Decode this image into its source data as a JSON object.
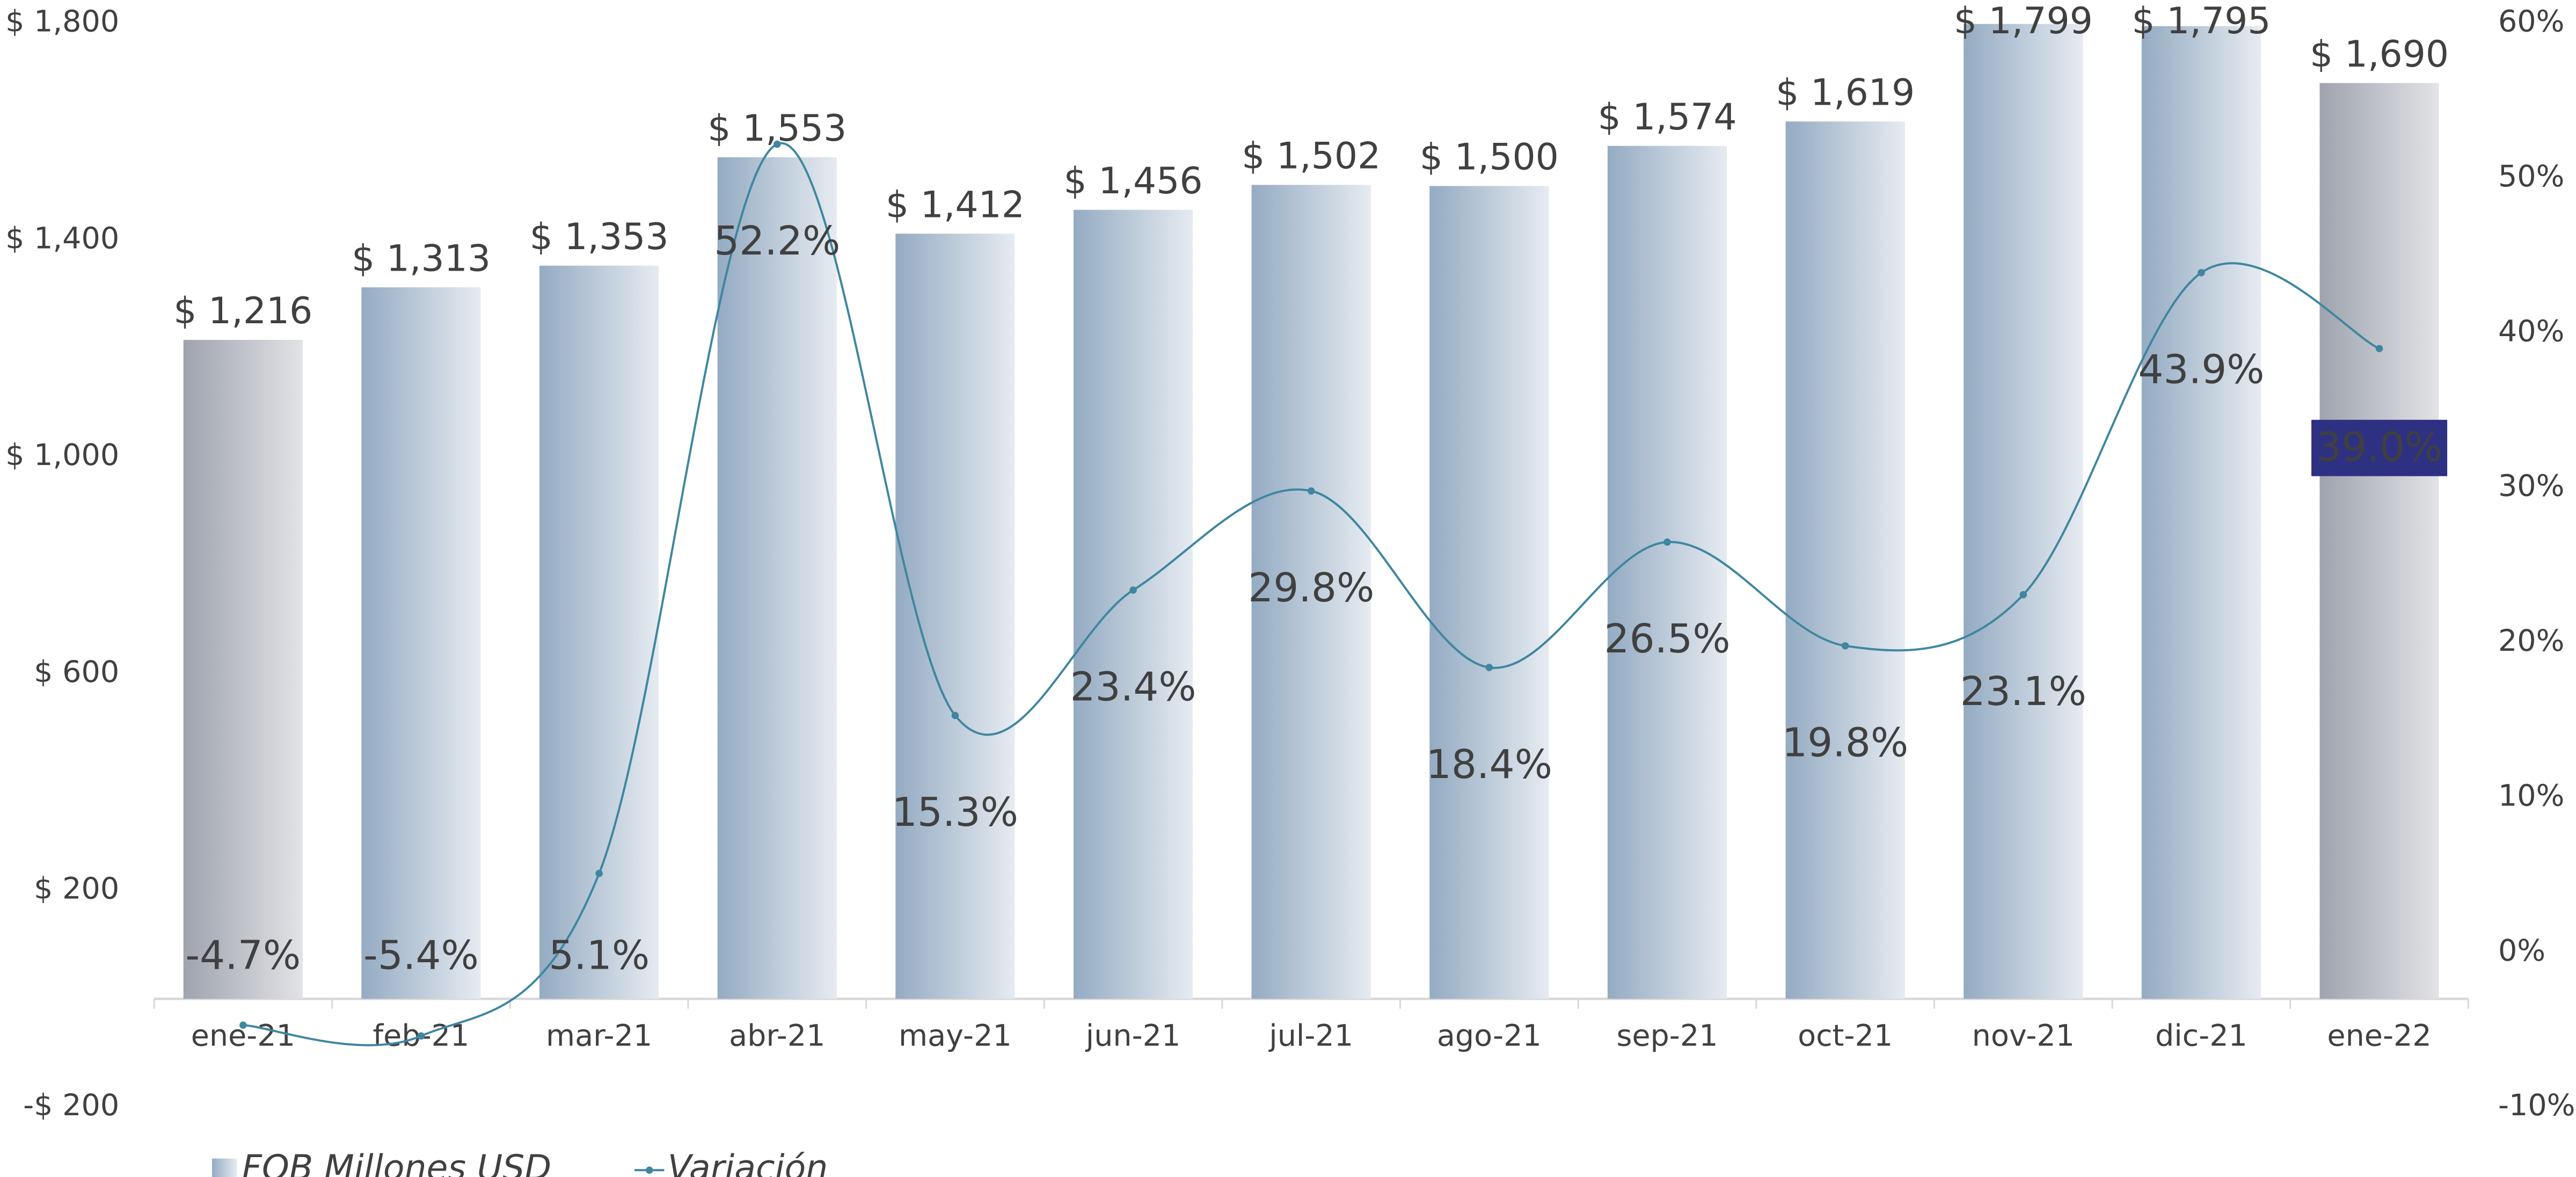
{
  "chart_data": {
    "type": "bar_line",
    "categories": [
      "ene-21",
      "feb-21",
      "mar-21",
      "abr-21",
      "may-21",
      "jun-21",
      "jul-21",
      "ago-21",
      "sep-21",
      "oct-21",
      "nov-21",
      "dic-21",
      "ene-22"
    ],
    "series": [
      {
        "name": "FOB Millones USD",
        "type": "bar",
        "color": "#94abc2",
        "edge_color": "#9ea3ae",
        "values": [
          1216,
          1313,
          1353,
          1553,
          1412,
          1456,
          1502,
          1500,
          1574,
          1619,
          1799,
          1795,
          1690
        ],
        "value_labels": [
          "$ 1,216",
          "$ 1,313",
          "$ 1,353",
          "$ 1,553",
          "$ 1,412",
          "$ 1,456",
          "$ 1,502",
          "$ 1,500",
          "$ 1,574",
          "$ 1,619",
          "$ 1,799",
          "$ 1,795",
          "$ 1,690"
        ]
      },
      {
        "name": "Variación",
        "type": "line",
        "axis": "y2",
        "color": "#3f86a0",
        "values": [
          -4.7,
          -5.4,
          5.1,
          52.2,
          15.3,
          23.4,
          29.8,
          18.4,
          26.5,
          19.8,
          23.1,
          43.9,
          39.0
        ],
        "value_labels": [
          "-4.7%",
          "-5.4%",
          "5.1%",
          "52.2%",
          "15.3%",
          "23.4%",
          "29.8%",
          "18.4%",
          "26.5%",
          "19.8%",
          "23.1%",
          "43.9%",
          "39.0%"
        ]
      }
    ],
    "ylim": [
      -200,
      1800
    ],
    "yticks": [
      {
        "value": -200,
        "label": "-$ 200"
      },
      {
        "value": 200,
        "label": "$ 200"
      },
      {
        "value": 600,
        "label": "$ 600"
      },
      {
        "value": 1000,
        "label": "$ 1,000"
      },
      {
        "value": 1400,
        "label": "$ 1,400"
      },
      {
        "value": 1800,
        "label": "$ 1,800"
      }
    ],
    "y2lim": [
      -10,
      60
    ],
    "y2ticks": [
      {
        "value": -10,
        "label": "-10%"
      },
      {
        "value": 0,
        "label": "0%"
      },
      {
        "value": 10,
        "label": "10%"
      },
      {
        "value": 20,
        "label": "20%"
      },
      {
        "value": 30,
        "label": "30%"
      },
      {
        "value": 40,
        "label": "40%"
      },
      {
        "value": 50,
        "label": "50%"
      },
      {
        "value": 60,
        "label": "60%"
      }
    ],
    "grid": false,
    "legend": "bottom-left"
  }
}
